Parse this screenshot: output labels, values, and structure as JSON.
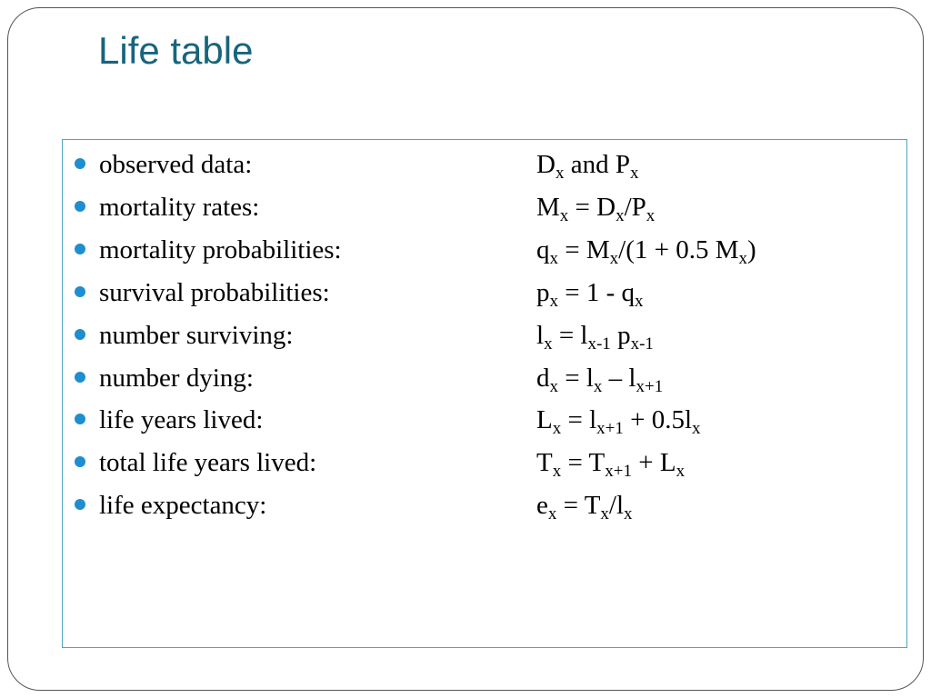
{
  "slide": {
    "title": "Life table",
    "rows": [
      {
        "label": "observed data:",
        "formula": [
          {
            "t": "D"
          },
          {
            "s": "x"
          },
          {
            "t": " and P"
          },
          {
            "s": "x"
          }
        ]
      },
      {
        "label": "mortality rates:",
        "formula": [
          {
            "t": "M"
          },
          {
            "s": "x"
          },
          {
            "t": " = D"
          },
          {
            "s": "x"
          },
          {
            "t": "/P"
          },
          {
            "s": "x"
          }
        ]
      },
      {
        "label": "mortality probabilities:",
        "formula": [
          {
            "t": "q"
          },
          {
            "s": "x"
          },
          {
            "t": " = M"
          },
          {
            "s": "x"
          },
          {
            "t": "/(1 + 0.5 M"
          },
          {
            "s": "x"
          },
          {
            "t": ")"
          }
        ]
      },
      {
        "label": "survival probabilities:",
        "formula": [
          {
            "t": "p"
          },
          {
            "s": "x"
          },
          {
            "t": " = 1 - q"
          },
          {
            "s": "x"
          }
        ]
      },
      {
        "label": "number surviving:",
        "formula": [
          {
            "t": "l"
          },
          {
            "s": "x"
          },
          {
            "t": " = l"
          },
          {
            "s": "x-1"
          },
          {
            "t": " p"
          },
          {
            "s": "x-1"
          }
        ]
      },
      {
        "label": "number dying:",
        "formula": [
          {
            "t": "d"
          },
          {
            "s": "x"
          },
          {
            "t": " = l"
          },
          {
            "s": "x"
          },
          {
            "t": " – l"
          },
          {
            "s": "x+1"
          }
        ]
      },
      {
        "label": "life years lived:",
        "formula": [
          {
            "t": "L"
          },
          {
            "s": "x"
          },
          {
            "t": " = l"
          },
          {
            "s": "x+1"
          },
          {
            "t": " + 0.5l"
          },
          {
            "s": "x"
          }
        ]
      },
      {
        "label": "total life years lived:",
        "formula": [
          {
            "t": "T"
          },
          {
            "s": "x"
          },
          {
            "t": " = T"
          },
          {
            "s": "x+1"
          },
          {
            "t": " + L"
          },
          {
            "s": "x"
          }
        ]
      },
      {
        "label": "life expectancy:",
        "formula": [
          {
            "t": "e"
          },
          {
            "s": "x"
          },
          {
            "t": " = T"
          },
          {
            "s": "x"
          },
          {
            "t": "/l"
          },
          {
            "s": "x"
          }
        ]
      }
    ]
  },
  "colors": {
    "title": "#17657d",
    "bullet": "#1e8ecf",
    "content_border": "#4aa8bd",
    "frame_border": "#555555"
  }
}
